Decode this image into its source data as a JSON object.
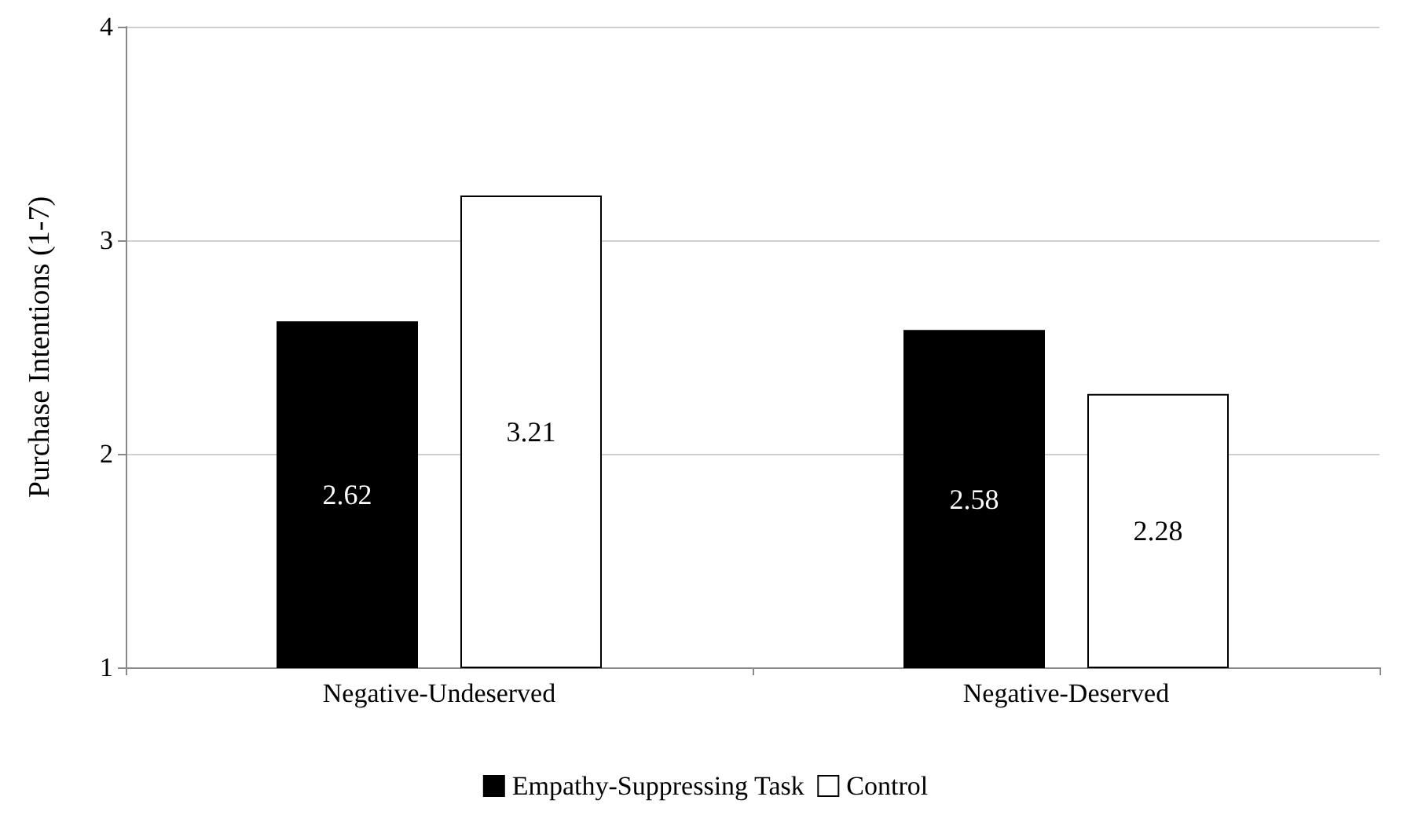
{
  "chart_data": {
    "type": "bar",
    "ylabel": "Purchase Intentions (1-7)",
    "categories": [
      "Negative-Undeserved",
      "Negative-Deserved"
    ],
    "series": [
      {
        "name": "Empathy-Suppressing Task",
        "color": "#000000",
        "values": [
          2.62,
          2.58
        ]
      },
      {
        "name": "Control",
        "color": "#ffffff",
        "values": [
          3.21,
          2.28
        ]
      }
    ],
    "ylim": [
      1,
      4
    ],
    "yticks": [
      1,
      2,
      3,
      4
    ],
    "grid": "y",
    "legend": "bottom",
    "data_labels": true
  }
}
